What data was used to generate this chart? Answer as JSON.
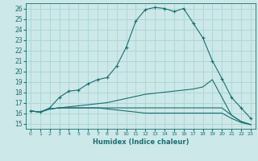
{
  "title": "",
  "xlabel": "Humidex (Indice chaleur)",
  "bg_color": "#cce8e8",
  "grid_color": "#aad4d4",
  "line_color": "#1a7070",
  "tick_color": "#1a7070",
  "xlim": [
    -0.5,
    23.5
  ],
  "ylim": [
    14.5,
    26.5
  ],
  "xticks": [
    0,
    1,
    2,
    3,
    4,
    5,
    6,
    7,
    8,
    9,
    10,
    11,
    12,
    13,
    14,
    15,
    16,
    17,
    18,
    19,
    20,
    21,
    22,
    23
  ],
  "yticks": [
    15,
    16,
    17,
    18,
    19,
    20,
    21,
    22,
    23,
    24,
    25,
    26
  ],
  "lines": [
    {
      "x": [
        0,
        1,
        2,
        3,
        4,
        5,
        6,
        7,
        8,
        9,
        10,
        11,
        12,
        13,
        14,
        15,
        16,
        17,
        18,
        19,
        20,
        21,
        22,
        23
      ],
      "y": [
        16.2,
        16.1,
        16.5,
        17.5,
        18.1,
        18.2,
        18.8,
        19.2,
        19.4,
        20.5,
        22.3,
        24.8,
        25.9,
        26.1,
        26.0,
        25.7,
        26.0,
        24.6,
        23.2,
        21.0,
        19.3,
        17.5,
        16.5,
        15.5
      ],
      "marker": "+"
    },
    {
      "x": [
        0,
        1,
        2,
        3,
        4,
        5,
        6,
        7,
        8,
        9,
        10,
        11,
        12,
        13,
        14,
        15,
        16,
        17,
        18,
        19,
        20,
        21,
        22,
        23
      ],
      "y": [
        16.2,
        16.1,
        16.4,
        16.5,
        16.6,
        16.7,
        16.8,
        16.9,
        17.0,
        17.2,
        17.4,
        17.6,
        17.8,
        17.9,
        18.0,
        18.1,
        18.2,
        18.3,
        18.5,
        19.2,
        17.5,
        15.8,
        15.2,
        14.9
      ],
      "marker": null
    },
    {
      "x": [
        0,
        1,
        2,
        3,
        4,
        5,
        6,
        7,
        8,
        9,
        10,
        11,
        12,
        13,
        14,
        15,
        16,
        17,
        18,
        19,
        20,
        21,
        22,
        23
      ],
      "y": [
        16.2,
        16.1,
        16.4,
        16.5,
        16.5,
        16.5,
        16.5,
        16.5,
        16.5,
        16.5,
        16.5,
        16.5,
        16.5,
        16.5,
        16.5,
        16.5,
        16.5,
        16.5,
        16.5,
        16.5,
        16.5,
        15.8,
        15.2,
        14.9
      ],
      "marker": null
    },
    {
      "x": [
        0,
        1,
        2,
        3,
        4,
        5,
        6,
        7,
        8,
        9,
        10,
        11,
        12,
        13,
        14,
        15,
        16,
        17,
        18,
        19,
        20,
        21,
        22,
        23
      ],
      "y": [
        16.2,
        16.1,
        16.4,
        16.5,
        16.5,
        16.5,
        16.5,
        16.5,
        16.4,
        16.3,
        16.2,
        16.1,
        16.0,
        16.0,
        16.0,
        16.0,
        16.0,
        16.0,
        16.0,
        16.0,
        16.0,
        15.5,
        15.1,
        14.9
      ],
      "marker": null
    }
  ]
}
